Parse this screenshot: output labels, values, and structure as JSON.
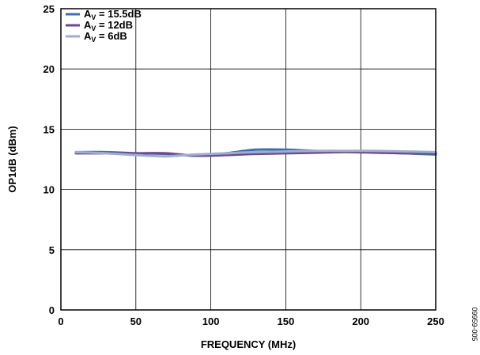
{
  "chart_data": {
    "type": "line",
    "title": "",
    "xlabel": "FREQUENCY (MHz)",
    "ylabel": "OP1dB (dBm)",
    "xlim": [
      0,
      250
    ],
    "ylim": [
      0,
      25
    ],
    "x_ticks": [
      "0",
      "50",
      "100",
      "150",
      "200",
      "250"
    ],
    "y_ticks": [
      "0",
      "5",
      "10",
      "15",
      "20",
      "25"
    ],
    "grid": true,
    "legend_position": "top-left",
    "series": [
      {
        "name": "15.5dB",
        "color": "#3b6fae",
        "x": [
          10,
          30,
          50,
          70,
          90,
          110,
          130,
          150,
          170,
          190,
          210,
          230,
          250
        ],
        "y": [
          13.1,
          13.1,
          13.0,
          12.95,
          12.8,
          13.0,
          13.3,
          13.3,
          13.2,
          13.15,
          13.1,
          13.0,
          12.9
        ]
      },
      {
        "name": "12dB",
        "color": "#6b4b8e",
        "x": [
          10,
          30,
          50,
          70,
          90,
          110,
          130,
          150,
          170,
          190,
          210,
          230,
          250
        ],
        "y": [
          13.0,
          13.0,
          13.0,
          13.0,
          12.8,
          12.85,
          12.95,
          13.0,
          13.05,
          13.1,
          13.05,
          13.0,
          13.0
        ]
      },
      {
        "name": "6dB",
        "color": "#9eaed0",
        "x": [
          10,
          30,
          50,
          70,
          90,
          110,
          130,
          150,
          170,
          190,
          210,
          230,
          250
        ],
        "y": [
          13.1,
          13.0,
          12.85,
          12.75,
          12.9,
          13.0,
          13.1,
          13.15,
          13.2,
          13.2,
          13.2,
          13.15,
          13.1
        ]
      }
    ],
    "legend_prefix": "A",
    "legend_sub": "V",
    "legend_eq": " = ",
    "figure_code": "09959-005"
  }
}
